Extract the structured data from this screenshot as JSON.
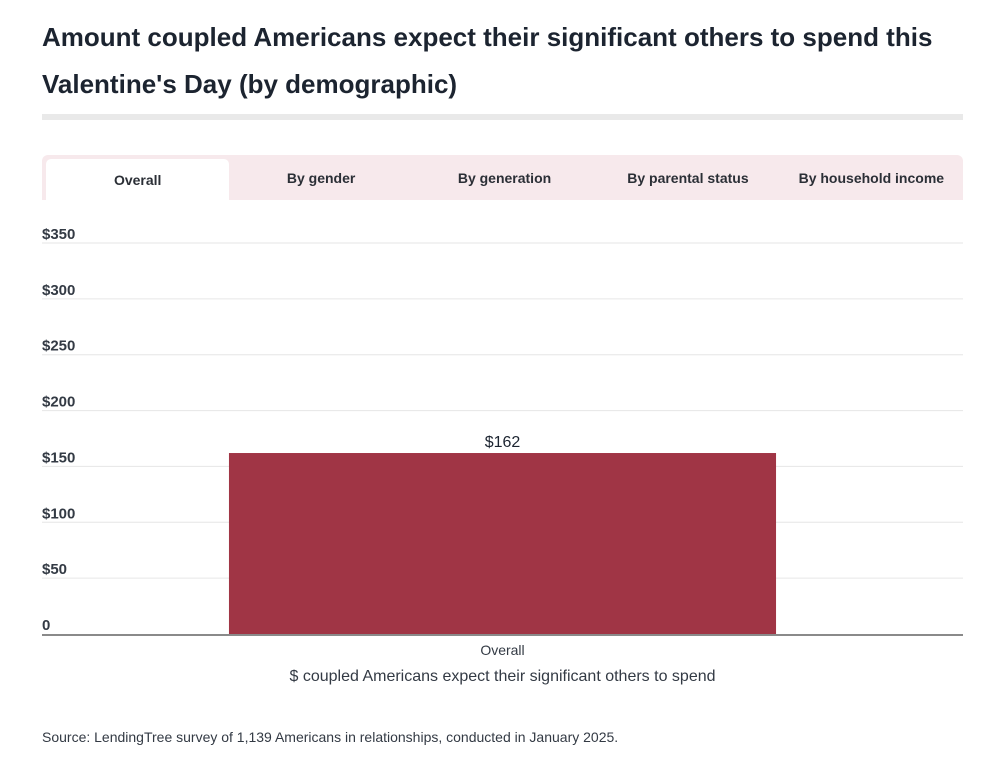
{
  "title": "Amount coupled Americans expect their significant others to spend this Valentine's Day (by demographic)",
  "tabs": [
    {
      "label": "Overall",
      "active": true
    },
    {
      "label": "By gender",
      "active": false
    },
    {
      "label": "By generation",
      "active": false
    },
    {
      "label": "By parental status",
      "active": false
    },
    {
      "label": "By household income",
      "active": false
    }
  ],
  "colors": {
    "bar": "#a03545",
    "tab_bar": "#f7e9ec",
    "grid": "#e6e6e6",
    "axis": "#8a8a8a"
  },
  "chart_data": {
    "type": "bar",
    "categories": [
      "Overall"
    ],
    "values": [
      162
    ],
    "value_labels": [
      "$162"
    ],
    "xlabel": "$ coupled Americans expect their significant others to spend",
    "ylabel": "",
    "ylim": [
      0,
      350
    ],
    "yticks": [
      0,
      50,
      100,
      150,
      200,
      250,
      300,
      350
    ],
    "ytick_labels": [
      "0",
      "$50",
      "$100",
      "$150",
      "$200",
      "$250",
      "$300",
      "$350"
    ],
    "grid": true
  },
  "source": "Source: LendingTree survey of 1,139 Americans in relationships, conducted in January 2025."
}
